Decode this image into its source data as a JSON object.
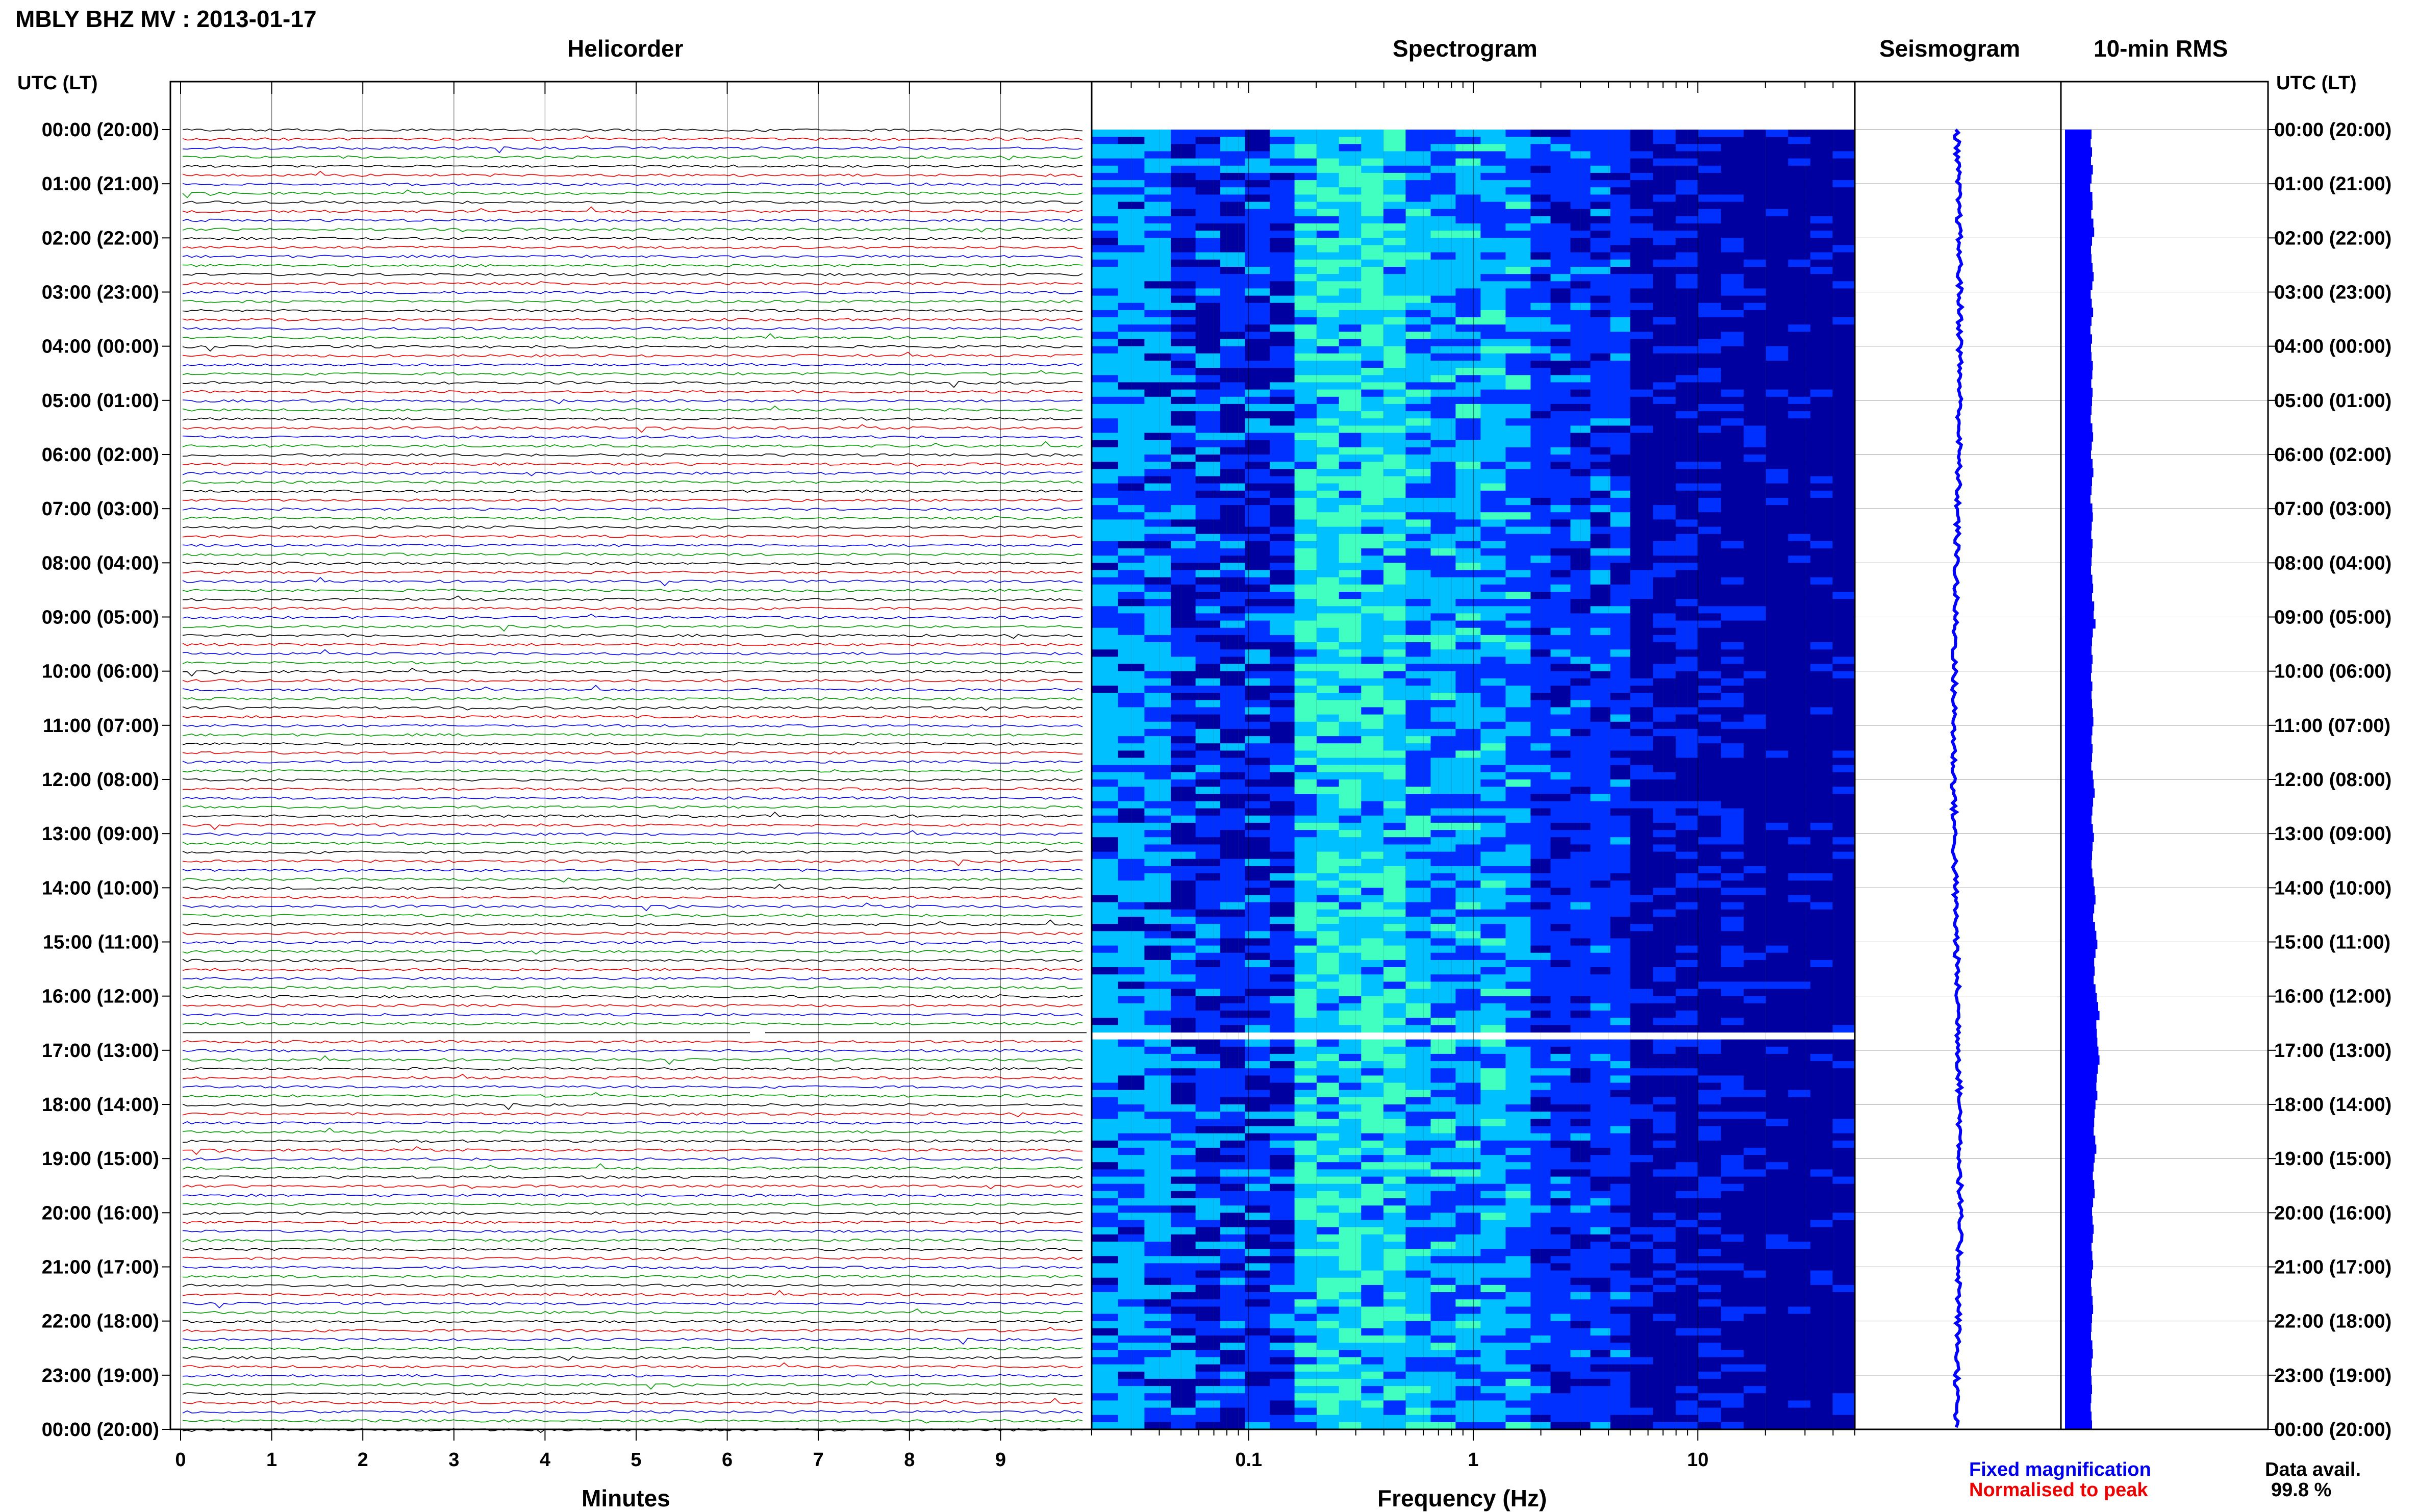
{
  "header": {
    "title": "MBLY BHZ MV : 2013-01-17"
  },
  "panels": {
    "helicorder": "Helicorder",
    "spectrogram": "Spectrogram",
    "seismogram": "Seismogram",
    "rms": "10-min RMS"
  },
  "axes": {
    "left_label": "UTC (LT)",
    "right_label": "UTC (LT)",
    "helicorder_xlabel": "Minutes",
    "spectrogram_xlabel": "Frequency (Hz)"
  },
  "legend": {
    "fixed": "Fixed magnification",
    "normalised": "Normalised to peak",
    "fixed_color": "#0000ee",
    "normalised_color": "#ee0000"
  },
  "data_avail": {
    "label": "Data avail.",
    "value": "99.8 %"
  },
  "chart_data": [
    {
      "type": "line",
      "title": "Helicorder",
      "xlabel": "Minutes",
      "x_ticks": [
        "0",
        "1",
        "2",
        "3",
        "4",
        "5",
        "6",
        "7",
        "8",
        "9"
      ],
      "xlim": [
        0,
        10
      ],
      "y_ticks_left": [
        "00:00 (20:00)",
        "01:00 (21:00)",
        "02:00 (22:00)",
        "03:00 (23:00)",
        "04:00 (00:00)",
        "05:00 (01:00)",
        "06:00 (02:00)",
        "07:00 (03:00)",
        "08:00 (04:00)",
        "09:00 (05:00)",
        "10:00 (06:00)",
        "11:00 (07:00)",
        "12:00 (08:00)",
        "13:00 (09:00)",
        "14:00 (10:00)",
        "15:00 (11:00)",
        "16:00 (12:00)",
        "17:00 (13:00)",
        "18:00 (14:00)",
        "19:00 (15:00)",
        "20:00 (16:00)",
        "21:00 (17:00)",
        "22:00 (18:00)",
        "23:00 (19:00)",
        "00:00 (20:00)"
      ],
      "traces_per_hour": 6,
      "trace_colors": [
        "#000000",
        "#ee0000",
        "#0000ee",
        "#009900"
      ],
      "gap_hour": 16.65
    },
    {
      "type": "heatmap",
      "title": "Spectrogram",
      "xlabel": "Frequency (Hz)",
      "x_scale": "log",
      "xlim": [
        0.02,
        50
      ],
      "x_ticks": [
        "0.1",
        "1",
        "10"
      ],
      "colormap": [
        "#0000a0",
        "#0030ff",
        "#00c0ff",
        "#40ffc0"
      ],
      "gap_hour": 16.65
    },
    {
      "type": "line",
      "title": "Seismogram",
      "line_color": "#0000ff"
    },
    {
      "type": "bar",
      "title": "10-min RMS",
      "bar_color": "#0000ff",
      "values": [
        1.0,
        0.97,
        1.02,
        0.98,
        1.05,
        1.0,
        0.95,
        1.03,
        1.04,
        0.99,
        1.07,
        1.1,
        1.02,
        0.98,
        1.0,
        1.04,
        1.08,
        1.03,
        0.97,
        1.01,
        1.06,
        1.0,
        0.96,
        1.02,
        0.98,
        1.0,
        1.05,
        1.03,
        0.99,
        1.04,
        1.02,
        1.0,
        0.97,
        1.03,
        1.06,
        1.01,
        0.98,
        1.04,
        1.07,
        1.02,
        1.0,
        0.96,
        1.03,
        1.05,
        1.01,
        0.99,
        1.04,
        1.02,
        1.0,
        0.98,
        1.03,
        1.06,
        1.02,
        1.1,
        1.08,
        1.15,
        1.05,
        1.02,
        1.0,
        1.04,
        1.01,
        0.98,
        1.03,
        1.0,
        1.02,
        1.05,
        1.07,
        1.03,
        1.0,
        1.04,
        1.02,
        0.99,
        1.05,
        1.08,
        1.12,
        1.06,
        1.03,
        1.0,
        1.05,
        1.09,
        1.04,
        1.02,
        1.0,
        1.03,
        1.08,
        1.12,
        1.15,
        1.1,
        1.06,
        1.13,
        1.18,
        1.22,
        1.15,
        1.1,
        1.12,
        1.08,
        1.15,
        1.2,
        1.25,
        1.3,
        1.18,
        1.2,
        1.22,
        1.26,
        1.3,
        1.24,
        1.2,
        1.18,
        1.22,
        1.15,
        1.12,
        1.1,
        1.08,
        1.14,
        1.18,
        1.12,
        1.08,
        1.05,
        1.1,
        1.12,
        1.06,
        1.02,
        1.04,
        1.08,
        1.05,
        1.0,
        1.03,
        1.06,
        1.02,
        0.98,
        1.0,
        1.04,
        1.06,
        1.02,
        1.0,
        0.98,
        1.03,
        1.05,
        1.01,
        0.98,
        1.0,
        1.02,
        0.99,
        0.97,
        1.0,
        1.02
      ]
    }
  ]
}
